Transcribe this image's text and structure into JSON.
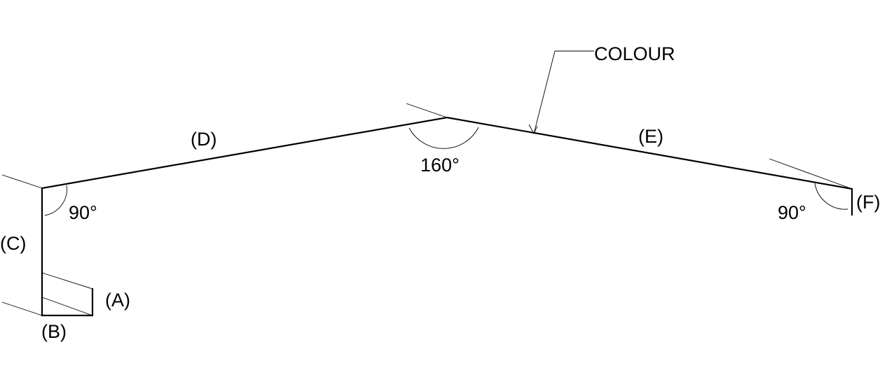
{
  "labels": {
    "a": "(A)",
    "b": "(B)",
    "c": "(C)",
    "d": "(D)",
    "e": "(E)",
    "f": "(F)"
  },
  "angles": {
    "left": "90°",
    "apex": "160°",
    "right": "90°"
  },
  "callout": {
    "text": "COLOUR"
  }
}
